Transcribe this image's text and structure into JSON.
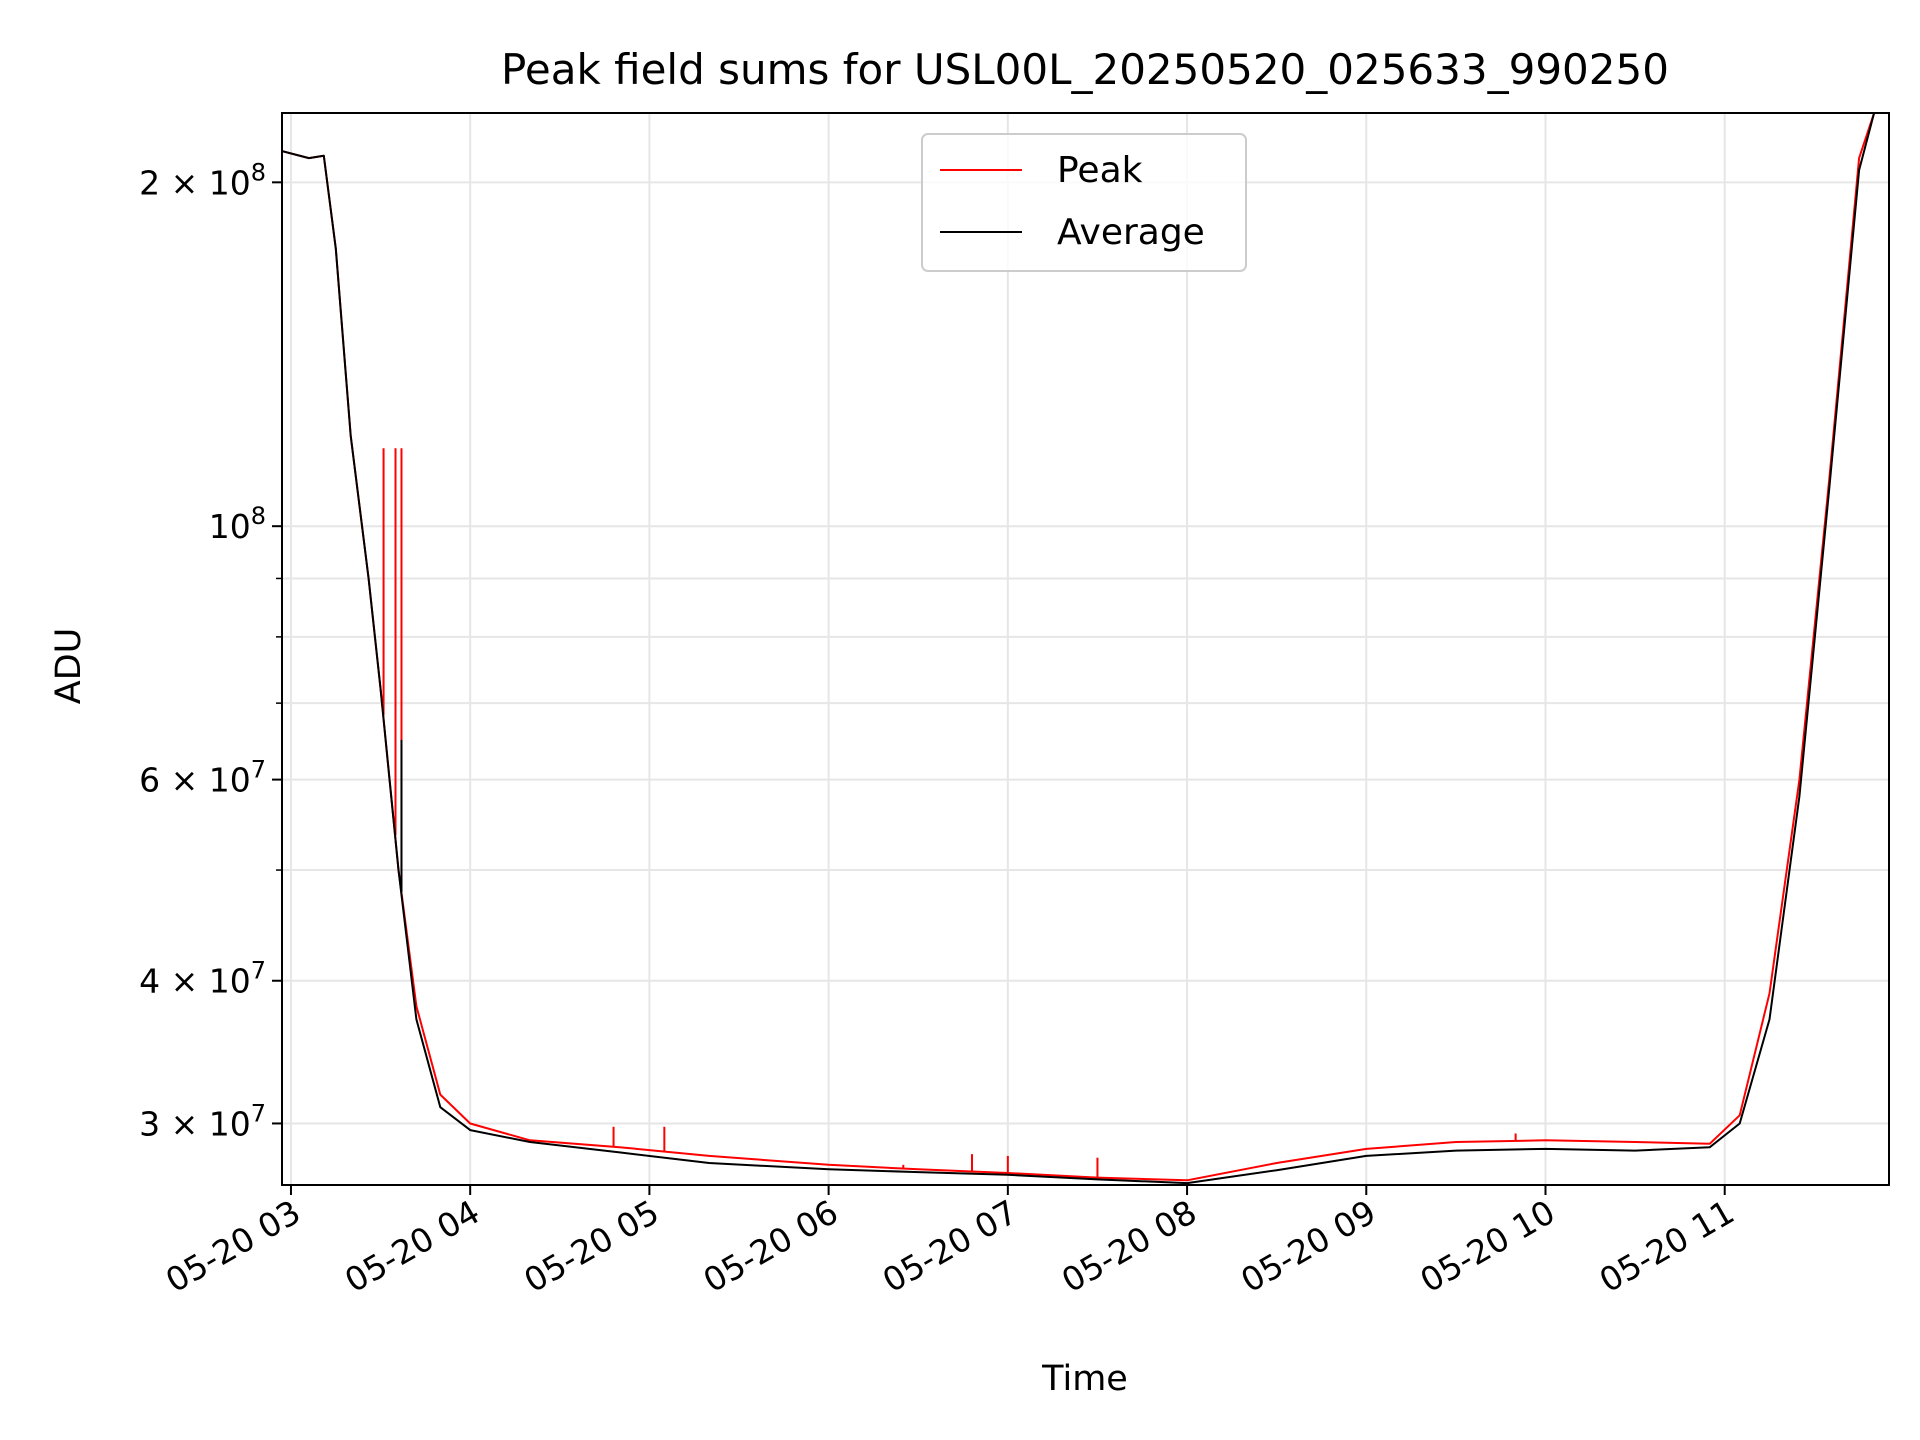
{
  "chart_data": {
    "type": "line",
    "title": "Peak field sums for USL00L_20250520_025633_990250",
    "xlabel": "Time",
    "ylabel": "ADU",
    "yscale": "log",
    "ylim": [
      26500000,
      230000000
    ],
    "xlim": [
      "2025-05-20 02:57",
      "2025-05-20 11:55"
    ],
    "grid": true,
    "legend": {
      "placement": "upper center",
      "entries": [
        "Peak",
        "Average"
      ]
    },
    "x_ticks": [
      {
        "value": "2025-05-20 03:00",
        "label": "05-20 03"
      },
      {
        "value": "2025-05-20 04:00",
        "label": "05-20 04"
      },
      {
        "value": "2025-05-20 05:00",
        "label": "05-20 05"
      },
      {
        "value": "2025-05-20 06:00",
        "label": "05-20 06"
      },
      {
        "value": "2025-05-20 07:00",
        "label": "05-20 07"
      },
      {
        "value": "2025-05-20 08:00",
        "label": "05-20 08"
      },
      {
        "value": "2025-05-20 09:00",
        "label": "05-20 09"
      },
      {
        "value": "2025-05-20 10:00",
        "label": "05-20 10"
      },
      {
        "value": "2025-05-20 11:00",
        "label": "05-20 11"
      }
    ],
    "y_ticks": [
      {
        "value": 30000000,
        "base": "3 × 10",
        "exp": "7"
      },
      {
        "value": 40000000,
        "base": "4 × 10",
        "exp": "7"
      },
      {
        "value": 60000000,
        "base": "6 × 10",
        "exp": "7"
      },
      {
        "value": 100000000,
        "base": "10",
        "exp": "8"
      },
      {
        "value": 200000000,
        "base": "2 × 10",
        "exp": "8"
      }
    ],
    "y_minor_ticks": [
      50000000,
      70000000,
      80000000,
      90000000
    ],
    "series": [
      {
        "name": "Peak",
        "color": "#ff0000",
        "points": [
          [
            "2025-05-20 02:57",
            213000000
          ],
          [
            "2025-05-20 03:06",
            210000000
          ],
          [
            "2025-05-20 03:11",
            211000000
          ],
          [
            "2025-05-20 03:15",
            175000000
          ],
          [
            "2025-05-20 03:20",
            120000000
          ],
          [
            "2025-05-20 03:26",
            90000000
          ],
          [
            "2025-05-20 03:30",
            72000000
          ],
          [
            "2025-05-20 03:36",
            50000000
          ],
          [
            "2025-05-20 03:42",
            38000000
          ],
          [
            "2025-05-20 03:50",
            31800000
          ],
          [
            "2025-05-20 04:00",
            30000000
          ],
          [
            "2025-05-20 04:20",
            29000000
          ],
          [
            "2025-05-20 04:50",
            28600000
          ],
          [
            "2025-05-20 05:20",
            28100000
          ],
          [
            "2025-05-20 06:00",
            27600000
          ],
          [
            "2025-05-20 06:30",
            27350000
          ],
          [
            "2025-05-20 07:00",
            27150000
          ],
          [
            "2025-05-20 07:30",
            26900000
          ],
          [
            "2025-05-20 08:00",
            26750000
          ],
          [
            "2025-05-20 08:30",
            27700000
          ],
          [
            "2025-05-20 09:00",
            28500000
          ],
          [
            "2025-05-20 09:30",
            28900000
          ],
          [
            "2025-05-20 10:00",
            29000000
          ],
          [
            "2025-05-20 10:30",
            28900000
          ],
          [
            "2025-05-20 10:55",
            28800000
          ],
          [
            "2025-05-20 11:05",
            30500000
          ],
          [
            "2025-05-20 11:15",
            39000000
          ],
          [
            "2025-05-20 11:25",
            60000000
          ],
          [
            "2025-05-20 11:35",
            110000000
          ],
          [
            "2025-05-20 11:45",
            210000000
          ],
          [
            "2025-05-20 11:50",
            230000000
          ]
        ],
        "spikes": [
          [
            "2025-05-20 03:31",
            117000000
          ],
          [
            "2025-05-20 03:35",
            117000000
          ],
          [
            "2025-05-20 03:37",
            117000000
          ],
          [
            "2025-05-20 04:48",
            29800000
          ],
          [
            "2025-05-20 05:05",
            29800000
          ],
          [
            "2025-05-20 06:25",
            27600000
          ],
          [
            "2025-05-20 06:48",
            28200000
          ],
          [
            "2025-05-20 07:00",
            28100000
          ],
          [
            "2025-05-20 07:30",
            28000000
          ],
          [
            "2025-05-20 09:50",
            29400000
          ]
        ]
      },
      {
        "name": "Average",
        "color": "#000000",
        "points": [
          [
            "2025-05-20 02:57",
            213000000
          ],
          [
            "2025-05-20 03:06",
            210000000
          ],
          [
            "2025-05-20 03:11",
            211000000
          ],
          [
            "2025-05-20 03:15",
            175000000
          ],
          [
            "2025-05-20 03:20",
            120000000
          ],
          [
            "2025-05-20 03:26",
            90000000
          ],
          [
            "2025-05-20 03:30",
            72000000
          ],
          [
            "2025-05-20 03:36",
            50000000
          ],
          [
            "2025-05-20 03:42",
            37000000
          ],
          [
            "2025-05-20 03:50",
            31000000
          ],
          [
            "2025-05-20 04:00",
            29600000
          ],
          [
            "2025-05-20 04:20",
            28900000
          ],
          [
            "2025-05-20 04:50",
            28300000
          ],
          [
            "2025-05-20 05:20",
            27700000
          ],
          [
            "2025-05-20 06:00",
            27350000
          ],
          [
            "2025-05-20 06:30",
            27200000
          ],
          [
            "2025-05-20 07:00",
            27050000
          ],
          [
            "2025-05-20 07:30",
            26800000
          ],
          [
            "2025-05-20 08:00",
            26600000
          ],
          [
            "2025-05-20 08:30",
            27300000
          ],
          [
            "2025-05-20 09:00",
            28100000
          ],
          [
            "2025-05-20 09:30",
            28400000
          ],
          [
            "2025-05-20 10:00",
            28500000
          ],
          [
            "2025-05-20 10:30",
            28400000
          ],
          [
            "2025-05-20 10:55",
            28600000
          ],
          [
            "2025-05-20 11:05",
            30000000
          ],
          [
            "2025-05-20 11:15",
            37000000
          ],
          [
            "2025-05-20 11:25",
            58000000
          ],
          [
            "2025-05-20 11:35",
            108000000
          ],
          [
            "2025-05-20 11:45",
            205000000
          ],
          [
            "2025-05-20 11:50",
            230000000
          ]
        ],
        "spikes": [
          [
            "2025-05-20 03:37",
            65000000
          ]
        ]
      }
    ]
  }
}
